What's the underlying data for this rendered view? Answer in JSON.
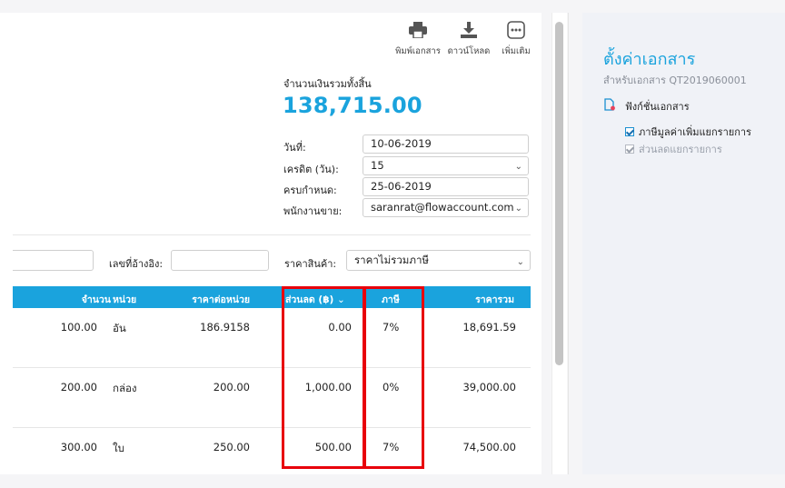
{
  "toolbar": {
    "print_label": "พิมพ์เอกสาร",
    "download_label": "ดาวน์โหลด",
    "more_label": "เพิ่มเติม"
  },
  "summary": {
    "total_label": "จำนวนเงินรวมทั้งสิ้น",
    "total_value": "138,715.00"
  },
  "fields": {
    "date_label": "วันที่:",
    "date_value": "10-06-2019",
    "credit_label": "เครดิต (วัน):",
    "credit_value": "15",
    "due_label": "ครบกำหนด:",
    "due_value": "25-06-2019",
    "sales_label": "พนักงานขาย:",
    "sales_value": "saranrat@flowaccount.com"
  },
  "filters": {
    "reference_label": "เลขที่อ้างอิง:",
    "reference_value": "",
    "price_type_label": "ราคาสินค้า:",
    "price_type_value": "ราคาไม่รวมภาษี"
  },
  "table": {
    "headers": {
      "qty": "จำนวน",
      "unit": "หน่วย",
      "unit_price": "ราคาต่อหน่วย",
      "discount": "ส่วนลด (฿)",
      "tax": "ภาษี",
      "total": "ราคารวม"
    },
    "rows": [
      {
        "qty": "100.00",
        "unit": "อัน",
        "unit_price": "186.9158",
        "discount": "0.00",
        "tax": "7%",
        "total": "18,691.59"
      },
      {
        "qty": "200.00",
        "unit": "กล่อง",
        "unit_price": "200.00",
        "discount": "1,000.00",
        "tax": "0%",
        "total": "39,000.00"
      },
      {
        "qty": "300.00",
        "unit": "ใบ",
        "unit_price": "250.00",
        "discount": "500.00",
        "tax": "7%",
        "total": "74,500.00"
      }
    ]
  },
  "settings_panel": {
    "title": "ตั้งค่าเอกสาร",
    "subtitle": "สำหรับเอกสาร QT2019060001",
    "section_label": "ฟังก์ชั่นเอกสาร",
    "options": [
      {
        "label": "ภาษีมูลค่าเพิ่มแยกรายการ",
        "checked": true,
        "disabled": false
      },
      {
        "label": "ส่วนลดแยกรายการ",
        "checked": true,
        "disabled": true
      }
    ]
  },
  "colors": {
    "accent": "#1aa3dd",
    "highlight": "#e8000b",
    "panel_bg": "#f0f2f7"
  }
}
